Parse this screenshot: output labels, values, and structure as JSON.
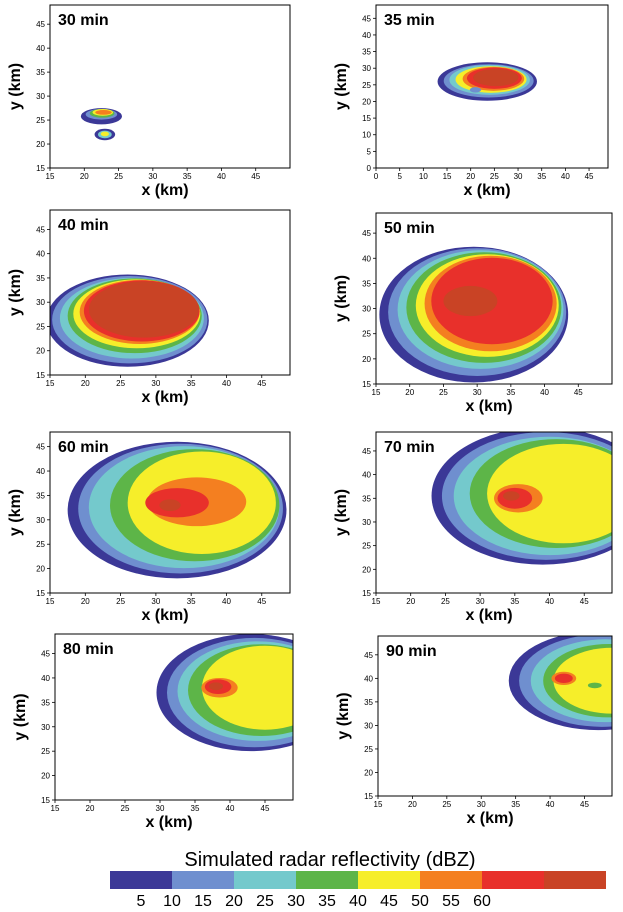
{
  "colorbar": {
    "title": "Simulated radar reflectivity  (dBZ)",
    "ticks": [
      "5",
      "10",
      "15",
      "20",
      "25",
      "30",
      "35",
      "40",
      "45",
      "50",
      "55",
      "60"
    ],
    "colors": [
      "#3b3897",
      "#6f8fcf",
      "#74c9cc",
      "#5db548",
      "#f6ee2a",
      "#f47f20",
      "#e8302b",
      "#c94325"
    ]
  },
  "chart_data": [
    {
      "type": "heatmap",
      "title": "30 min",
      "xlabel": "x (km)",
      "ylabel": "y (km)",
      "xticks": [
        15,
        20,
        25,
        30,
        35,
        40,
        45
      ],
      "yticks": [
        15,
        20,
        25,
        30,
        35,
        40,
        45
      ],
      "xlim": [
        15,
        50
      ],
      "ylim": [
        15,
        49
      ],
      "cells": [
        {
          "x": 22.5,
          "y": 25.8,
          "rx": 3.0,
          "ry": 1.7,
          "level": 0
        },
        {
          "x": 22.5,
          "y": 26.2,
          "rx": 2.3,
          "ry": 1.1,
          "level": 1
        },
        {
          "x": 22.6,
          "y": 26.4,
          "rx": 1.8,
          "ry": 0.9,
          "level": 3
        },
        {
          "x": 22.7,
          "y": 26.6,
          "rx": 1.5,
          "ry": 0.7,
          "level": 4
        },
        {
          "x": 22.8,
          "y": 26.6,
          "rx": 1.2,
          "ry": 0.5,
          "level": 5
        },
        {
          "x": 23.0,
          "y": 22.0,
          "rx": 1.5,
          "ry": 1.2,
          "level": 0
        },
        {
          "x": 23.0,
          "y": 22.0,
          "rx": 1.0,
          "ry": 0.8,
          "level": 2
        },
        {
          "x": 23.0,
          "y": 22.1,
          "rx": 0.6,
          "ry": 0.5,
          "level": 4
        }
      ]
    },
    {
      "type": "heatmap",
      "title": "35 min",
      "xlabel": "x (km)",
      "ylabel": "y (km)",
      "xticks": [
        0,
        5,
        10,
        15,
        20,
        25,
        30,
        35,
        40,
        45
      ],
      "yticks": [
        0,
        5,
        10,
        15,
        20,
        25,
        30,
        35,
        40,
        45
      ],
      "xlim": [
        0,
        49
      ],
      "ylim": [
        0,
        49
      ],
      "cells": [
        {
          "x": 23.5,
          "y": 26.0,
          "rx": 10.5,
          "ry": 5.8,
          "level": 0
        },
        {
          "x": 23.8,
          "y": 26.2,
          "rx": 9.5,
          "ry": 5.0,
          "level": 1
        },
        {
          "x": 24.0,
          "y": 26.5,
          "rx": 8.5,
          "ry": 4.5,
          "level": 2
        },
        {
          "x": 24.3,
          "y": 26.6,
          "rx": 7.5,
          "ry": 4.0,
          "level": 4
        },
        {
          "x": 24.8,
          "y": 26.8,
          "rx": 6.5,
          "ry": 3.6,
          "level": 5
        },
        {
          "x": 25.0,
          "y": 27.0,
          "rx": 5.8,
          "ry": 3.2,
          "level": 6
        },
        {
          "x": 25.3,
          "y": 27.2,
          "rx": 4.8,
          "ry": 2.6,
          "level": 7
        },
        {
          "x": 21.0,
          "y": 23.5,
          "rx": 1.2,
          "ry": 0.8,
          "level": 1
        }
      ]
    },
    {
      "type": "heatmap",
      "title": "40 min",
      "xlabel": "x (km)",
      "ylabel": "y (km)",
      "xticks": [
        15,
        20,
        25,
        30,
        35,
        40,
        45
      ],
      "yticks": [
        15,
        20,
        25,
        30,
        35,
        40,
        45
      ],
      "xlim": [
        15,
        49
      ],
      "ylim": [
        15,
        49
      ],
      "cells": [
        {
          "x": 26.0,
          "y": 26.2,
          "rx": 11.5,
          "ry": 9.5,
          "level": 0
        },
        {
          "x": 26.3,
          "y": 26.4,
          "rx": 11.0,
          "ry": 9.0,
          "level": 1
        },
        {
          "x": 26.6,
          "y": 26.7,
          "rx": 10.2,
          "ry": 8.3,
          "level": 2
        },
        {
          "x": 27.0,
          "y": 27.2,
          "rx": 9.5,
          "ry": 7.7,
          "level": 3
        },
        {
          "x": 27.3,
          "y": 27.6,
          "rx": 9.0,
          "ry": 7.1,
          "level": 4
        },
        {
          "x": 27.7,
          "y": 28.0,
          "rx": 8.5,
          "ry": 6.6,
          "level": 5
        },
        {
          "x": 28.0,
          "y": 28.2,
          "rx": 8.2,
          "ry": 6.3,
          "level": 6
        },
        {
          "x": 28.3,
          "y": 28.5,
          "rx": 7.8,
          "ry": 5.8,
          "level": 7
        }
      ]
    },
    {
      "type": "heatmap",
      "title": "50 min",
      "xlabel": "x (km)",
      "ylabel": "y (km)",
      "xticks": [
        15,
        20,
        25,
        30,
        35,
        40,
        45
      ],
      "yticks": [
        15,
        20,
        25,
        30,
        35,
        40,
        45
      ],
      "xlim": [
        15,
        50
      ],
      "ylim": [
        15,
        49
      ],
      "cells": [
        {
          "x": 29.5,
          "y": 28.8,
          "rx": 14.0,
          "ry": 13.5,
          "level": 0
        },
        {
          "x": 30.0,
          "y": 29.3,
          "rx": 13.2,
          "ry": 12.7,
          "level": 1
        },
        {
          "x": 30.5,
          "y": 29.8,
          "rx": 12.3,
          "ry": 11.8,
          "level": 2
        },
        {
          "x": 31.0,
          "y": 30.2,
          "rx": 11.5,
          "ry": 11.0,
          "level": 3
        },
        {
          "x": 31.5,
          "y": 30.6,
          "rx": 10.6,
          "ry": 10.2,
          "level": 4
        },
        {
          "x": 32.0,
          "y": 31.0,
          "rx": 9.8,
          "ry": 9.5,
          "level": 5
        },
        {
          "x": 32.2,
          "y": 31.5,
          "rx": 9.0,
          "ry": 8.6,
          "level": 6
        },
        {
          "x": 29.0,
          "y": 31.5,
          "rx": 4.0,
          "ry": 3.0,
          "level": 7
        }
      ]
    },
    {
      "type": "heatmap",
      "title": "60 min",
      "xlabel": "x (km)",
      "ylabel": "y (km)",
      "xticks": [
        15,
        20,
        25,
        30,
        35,
        40,
        45
      ],
      "yticks": [
        15,
        20,
        25,
        30,
        35,
        40,
        45
      ],
      "xlim": [
        15,
        49
      ],
      "ylim": [
        15,
        48
      ],
      "cells": [
        {
          "x": 33.0,
          "y": 32.0,
          "rx": 15.5,
          "ry": 14.0,
          "level": 0
        },
        {
          "x": 33.5,
          "y": 32.3,
          "rx": 14.5,
          "ry": 13.3,
          "level": 1
        },
        {
          "x": 34.0,
          "y": 32.6,
          "rx": 13.5,
          "ry": 12.5,
          "level": 2
        },
        {
          "x": 35.5,
          "y": 33.0,
          "rx": 12.0,
          "ry": 11.5,
          "level": 3
        },
        {
          "x": 36.5,
          "y": 33.5,
          "rx": 10.5,
          "ry": 10.5,
          "level": 4
        },
        {
          "x": 35.8,
          "y": 33.7,
          "rx": 7.0,
          "ry": 5.0,
          "level": 5
        },
        {
          "x": 33.0,
          "y": 33.5,
          "rx": 4.5,
          "ry": 3.0,
          "level": 6
        },
        {
          "x": 32.0,
          "y": 33.0,
          "rx": 1.5,
          "ry": 1.2,
          "level": 7
        }
      ]
    },
    {
      "type": "heatmap",
      "title": "70 min",
      "xlabel": "x (km)",
      "ylabel": "y (km)",
      "xticks": [
        15,
        20,
        25,
        30,
        35,
        40,
        45
      ],
      "yticks": [
        15,
        20,
        25,
        30,
        35,
        40,
        45
      ],
      "xlim": [
        15,
        49
      ],
      "ylim": [
        15,
        49
      ],
      "cells": [
        {
          "x": 39.0,
          "y": 35.5,
          "rx": 16.0,
          "ry": 14.5,
          "level": 0
        },
        {
          "x": 39.5,
          "y": 35.5,
          "rx": 15.0,
          "ry": 13.5,
          "level": 1
        },
        {
          "x": 40.0,
          "y": 35.5,
          "rx": 13.8,
          "ry": 12.5,
          "level": 2
        },
        {
          "x": 41.0,
          "y": 36.0,
          "rx": 12.5,
          "ry": 11.5,
          "level": 3
        },
        {
          "x": 42.0,
          "y": 36.0,
          "rx": 11.0,
          "ry": 10.5,
          "level": 4
        },
        {
          "x": 35.5,
          "y": 35.0,
          "rx": 3.5,
          "ry": 3.0,
          "level": 5
        },
        {
          "x": 35.0,
          "y": 35.0,
          "rx": 2.5,
          "ry": 2.2,
          "level": 6
        },
        {
          "x": 34.5,
          "y": 35.5,
          "rx": 1.2,
          "ry": 1.0,
          "level": 7
        }
      ]
    },
    {
      "type": "heatmap",
      "title": "80 min",
      "xlabel": "x (km)",
      "ylabel": "y (km)",
      "xticks": [
        15,
        20,
        25,
        30,
        35,
        40,
        45
      ],
      "yticks": [
        15,
        20,
        25,
        30,
        35,
        40,
        45
      ],
      "xlim": [
        15,
        49
      ],
      "ylim": [
        15,
        49
      ],
      "cells": [
        {
          "x": 43.0,
          "y": 37.0,
          "rx": 13.5,
          "ry": 12.0,
          "level": 0
        },
        {
          "x": 43.5,
          "y": 37.0,
          "rx": 12.5,
          "ry": 11.2,
          "level": 1
        },
        {
          "x": 44.0,
          "y": 37.3,
          "rx": 11.5,
          "ry": 10.2,
          "level": 2
        },
        {
          "x": 44.5,
          "y": 37.5,
          "rx": 10.5,
          "ry": 9.4,
          "level": 3
        },
        {
          "x": 45.0,
          "y": 38.0,
          "rx": 9.0,
          "ry": 8.6,
          "level": 4
        },
        {
          "x": 38.5,
          "y": 38.0,
          "rx": 2.6,
          "ry": 2.0,
          "level": 5
        },
        {
          "x": 38.3,
          "y": 38.2,
          "rx": 1.9,
          "ry": 1.5,
          "level": 6
        },
        {
          "x": 38.0,
          "y": 38.3,
          "rx": 1.0,
          "ry": 0.8,
          "level": 7
        }
      ]
    },
    {
      "type": "heatmap",
      "title": "90 min",
      "xlabel": "x (km)",
      "ylabel": "y (km)",
      "xticks": [
        15,
        20,
        25,
        30,
        35,
        40,
        45
      ],
      "yticks": [
        15,
        20,
        25,
        30,
        35,
        40,
        45
      ],
      "xlim": [
        15,
        49
      ],
      "ylim": [
        15,
        49
      ],
      "cells": [
        {
          "x": 47.0,
          "y": 39.5,
          "rx": 13.0,
          "ry": 10.5,
          "level": 0
        },
        {
          "x": 47.5,
          "y": 39.5,
          "rx": 12.0,
          "ry": 9.8,
          "level": 1
        },
        {
          "x": 48.0,
          "y": 39.5,
          "rx": 10.8,
          "ry": 8.8,
          "level": 2
        },
        {
          "x": 48.5,
          "y": 39.5,
          "rx": 9.5,
          "ry": 7.8,
          "level": 3
        },
        {
          "x": 49.0,
          "y": 39.5,
          "rx": 8.5,
          "ry": 7.0,
          "level": 4
        },
        {
          "x": 42.0,
          "y": 40.0,
          "rx": 1.8,
          "ry": 1.4,
          "level": 5
        },
        {
          "x": 42.0,
          "y": 40.0,
          "rx": 1.3,
          "ry": 1.0,
          "level": 6
        },
        {
          "x": 46.5,
          "y": 38.5,
          "rx": 1.0,
          "ry": 0.6,
          "level": 3
        }
      ]
    }
  ]
}
